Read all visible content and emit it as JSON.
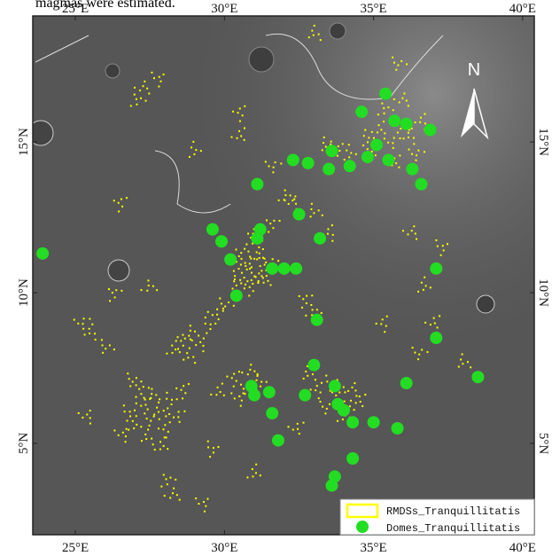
{
  "caption": "magmas were estimated.",
  "chart_data": {
    "type": "scatter",
    "north_label": "N",
    "xlim": [
      23.57,
      40.39
    ],
    "ylim": [
      1.97,
      19.18
    ],
    "xticks": [
      {
        "value": 25,
        "label": "25°E"
      },
      {
        "value": 30,
        "label": "30°E"
      },
      {
        "value": 35,
        "label": "35°E"
      },
      {
        "value": 40,
        "label": "40°E"
      }
    ],
    "yticks": [
      {
        "value": 5,
        "label": "5°N"
      },
      {
        "value": 10,
        "label": "10°N"
      },
      {
        "value": 15,
        "label": "15°N"
      }
    ],
    "legend": "lower right",
    "series": [
      {
        "name": "RMDSs_Tranquillitatis",
        "color": "#ffff00",
        "x": [
          30.6,
          30.8,
          31.0,
          31.2,
          30.9,
          31.3,
          30.7,
          31.1,
          30.5,
          31.4,
          31.5,
          30.4,
          31.0,
          31.6,
          32.1,
          32.3,
          26.8,
          27.0,
          27.3,
          27.5,
          27.8,
          28.0,
          27.2,
          27.6,
          26.6,
          28.2,
          27.9,
          28.4,
          26.9,
          27.4,
          28.6,
          28.1,
          28.3,
          29.3,
          34.8,
          35.2,
          35.6,
          35.9,
          36.2,
          35.0,
          35.4,
          36.0,
          33.8,
          34.2,
          35.7,
          36.4,
          33.4,
          36.6,
          33.8,
          34.1,
          34.3,
          33.6,
          34.0,
          34.5,
          33.4,
          32.8,
          33.1,
          28.6,
          28.9,
          29.2,
          29.5,
          28.3,
          29.7,
          30.0,
          28.8,
          30.3,
          30.7,
          30.9,
          30.5,
          31.2,
          29.8,
          25.2,
          26.0,
          25.5,
          26.5,
          27.1,
          27.3,
          27.8,
          29.0,
          30.5,
          31.6,
          33.0,
          33.5,
          32.7,
          33.0,
          36.3,
          37.3,
          36.7,
          37.0,
          36.5,
          38.0,
          35.3,
          26.3,
          27.5,
          25.4,
          29.6,
          31.0,
          32.4,
          35.8,
          33.0,
          30.5
        ],
        "values": [
          10.5,
          11.0,
          10.6,
          11.2,
          10.2,
          10.7,
          11.4,
          11.6,
          10.9,
          10.4,
          11.0,
          10.3,
          12.0,
          12.3,
          13.2,
          13.0,
          6.0,
          5.6,
          6.3,
          5.8,
          6.1,
          5.5,
          6.8,
          6.6,
          5.3,
          6.4,
          4.9,
          5.9,
          7.1,
          5.2,
          6.8,
          3.8,
          3.3,
          3.0,
          15.1,
          15.4,
          15.0,
          15.5,
          15.2,
          14.7,
          16.1,
          16.4,
          14.8,
          14.6,
          14.3,
          14.6,
          14.9,
          15.7,
          6.6,
          6.2,
          6.8,
          7.0,
          5.9,
          6.4,
          6.2,
          7.3,
          6.8,
          8.4,
          8.7,
          8.3,
          8.9,
          8.1,
          9.3,
          9.6,
          7.9,
          7.2,
          6.8,
          7.4,
          6.5,
          7.0,
          6.7,
          9.0,
          8.2,
          8.7,
          13.0,
          16.4,
          16.8,
          17.1,
          14.7,
          15.2,
          14.2,
          12.7,
          12.0,
          9.8,
          9.4,
          12.0,
          11.5,
          10.2,
          9.0,
          8.0,
          7.7,
          9.0,
          10.0,
          10.2,
          5.9,
          4.8,
          4.0,
          5.5,
          17.6,
          18.6,
          16.0
        ]
      },
      {
        "name": "Domes_Tranquillitatis",
        "color": "#22dd22",
        "x": [
          23.9,
          35.4,
          34.6,
          35.7,
          36.1,
          36.9,
          33.6,
          35.1,
          32.3,
          32.8,
          33.5,
          34.2,
          34.8,
          35.5,
          36.3,
          36.6,
          31.1,
          32.5,
          29.6,
          29.9,
          31.2,
          31.1,
          33.2,
          30.2,
          31.6,
          32.0,
          32.4,
          30.4,
          37.1,
          33.1,
          37.1,
          33.0,
          30.9,
          31.0,
          31.5,
          32.7,
          33.7,
          36.1,
          38.5,
          33.8,
          34.0,
          34.3,
          31.6,
          35.0,
          35.8,
          31.8,
          34.3,
          33.7,
          33.6
        ],
        "values": [
          11.3,
          16.6,
          16.0,
          15.7,
          15.6,
          15.4,
          14.7,
          14.9,
          14.4,
          14.3,
          14.1,
          14.2,
          14.5,
          14.4,
          14.1,
          13.6,
          13.6,
          12.6,
          12.1,
          11.7,
          12.1,
          11.8,
          11.8,
          11.1,
          10.8,
          10.8,
          10.8,
          9.9,
          10.8,
          9.1,
          8.5,
          7.6,
          6.9,
          6.6,
          6.7,
          6.6,
          6.9,
          7.0,
          7.2,
          6.3,
          6.1,
          5.7,
          6.0,
          5.7,
          5.5,
          5.1,
          4.5,
          3.9,
          3.6
        ]
      }
    ]
  }
}
